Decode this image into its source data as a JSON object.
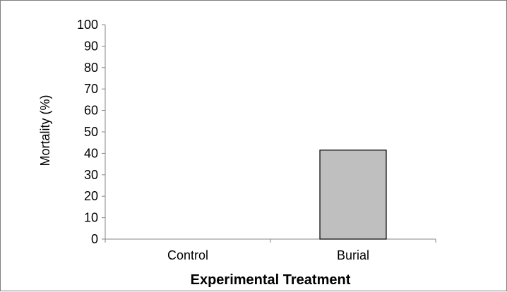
{
  "chart_data": {
    "type": "bar",
    "categories": [
      "Control",
      "Burial"
    ],
    "values": [
      0,
      41.5
    ],
    "xlabel": "Experimental Treatment",
    "ylabel": "Mortality (%)",
    "ylim": [
      0,
      100
    ],
    "yticks": [
      "0",
      "10",
      "20",
      "30",
      "40",
      "50",
      "60",
      "70",
      "80",
      "90",
      "100"
    ],
    "grid": false,
    "legend": "none",
    "bar_color": "#bfbfbf",
    "bar_edge_color": "#000000"
  }
}
